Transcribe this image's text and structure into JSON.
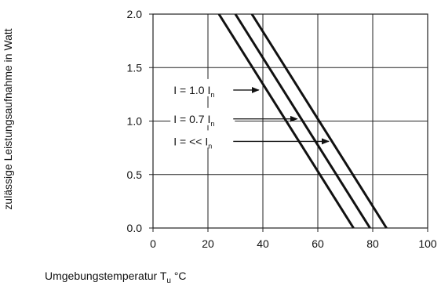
{
  "chart_data": {
    "type": "line",
    "xlabel": {
      "main": "Umgebungstemperatur T",
      "sub": "u",
      "unit": " °C"
    },
    "ylabel": "zulässige Leistungsaufnahme in Watt",
    "xlim": [
      0,
      100
    ],
    "ylim": [
      0,
      2.0
    ],
    "x_ticks": [
      "0",
      "20",
      "40",
      "60",
      "80",
      "100"
    ],
    "y_ticks": [
      "0.0",
      "0.5",
      "1.0",
      "1.5",
      "2.0"
    ],
    "grid": true,
    "legend": "none",
    "series": [
      {
        "points": [
          [
            24,
            2.0
          ],
          [
            73,
            0.0
          ]
        ]
      },
      {
        "points": [
          [
            30,
            2.0
          ],
          [
            79,
            0.0
          ]
        ]
      },
      {
        "points": [
          [
            36,
            2.0
          ],
          [
            85,
            0.0
          ]
        ]
      }
    ],
    "annotations": [
      {
        "label": "I = 1.0 I",
        "sub": "n",
        "text_at": [
          7.5,
          1.29
        ],
        "arrow_to": [
          38.5,
          1.29
        ]
      },
      {
        "label": "I = 0.7 I",
        "sub": "n",
        "text_at": [
          7.5,
          1.02
        ],
        "arrow_to": [
          52.5,
          1.02
        ]
      },
      {
        "label": "I = << I",
        "sub": "n",
        "text_at": [
          7.5,
          0.81
        ],
        "arrow_to": [
          64,
          0.81
        ]
      }
    ]
  }
}
